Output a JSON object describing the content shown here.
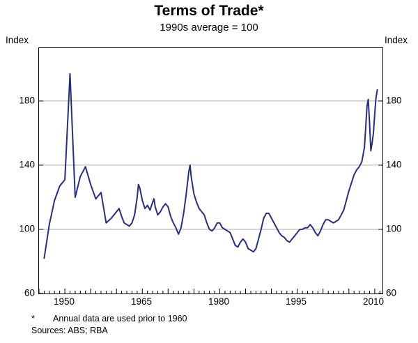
{
  "header": {
    "title": "Terms of Trade*",
    "subtitle": "1990s average = 100"
  },
  "axes": {
    "left_unit": "Index",
    "right_unit": "Index"
  },
  "footnotes": {
    "marker": "*",
    "note": "Annual data are used prior to 1960",
    "sources": "Sources: ABS; RBA"
  },
  "chart_data": {
    "type": "line",
    "title": "Terms of Trade*",
    "subtitle": "1990s average = 100",
    "ylabel_left": "Index",
    "ylabel_right": "Index",
    "x_domain": [
      1945,
      2011.5
    ],
    "y_domain": [
      60,
      213
    ],
    "y_ticks": [
      60,
      100,
      140,
      180
    ],
    "x_ticks": [
      1950,
      1965,
      1980,
      1995,
      2010
    ],
    "gridlines": [
      100,
      140,
      180
    ],
    "grid_color": "#ababab",
    "line_color": "#252e87",
    "series": [
      {
        "name": "Terms of trade (1990s average = 100)",
        "points": [
          [
            1946,
            82
          ],
          [
            1947,
            103
          ],
          [
            1948,
            118
          ],
          [
            1949,
            127
          ],
          [
            1950,
            131
          ],
          [
            1951,
            197
          ],
          [
            1952,
            120
          ],
          [
            1953,
            133
          ],
          [
            1954,
            139
          ],
          [
            1955,
            128
          ],
          [
            1956,
            119
          ],
          [
            1957,
            123
          ],
          [
            1958,
            104
          ],
          [
            1959,
            107
          ],
          [
            1960,
            111
          ],
          [
            1960.5,
            113
          ],
          [
            1961,
            108
          ],
          [
            1961.5,
            104
          ],
          [
            1962,
            103
          ],
          [
            1962.5,
            102
          ],
          [
            1963,
            104
          ],
          [
            1963.5,
            109
          ],
          [
            1964,
            120
          ],
          [
            1964.25,
            128
          ],
          [
            1964.5,
            126
          ],
          [
            1965,
            118
          ],
          [
            1965.5,
            113
          ],
          [
            1966,
            115
          ],
          [
            1966.5,
            112
          ],
          [
            1967,
            117
          ],
          [
            1967.25,
            119
          ],
          [
            1967.5,
            114
          ],
          [
            1968,
            109
          ],
          [
            1968.5,
            111
          ],
          [
            1969,
            114
          ],
          [
            1969.5,
            116
          ],
          [
            1970,
            114
          ],
          [
            1970.5,
            108
          ],
          [
            1971,
            104
          ],
          [
            1971.5,
            101
          ],
          [
            1972,
            97
          ],
          [
            1972.5,
            101
          ],
          [
            1973,
            110
          ],
          [
            1973.5,
            122
          ],
          [
            1974,
            136
          ],
          [
            1974.25,
            140
          ],
          [
            1974.5,
            132
          ],
          [
            1975,
            122
          ],
          [
            1975.5,
            117
          ],
          [
            1976,
            113
          ],
          [
            1976.5,
            111
          ],
          [
            1977,
            109
          ],
          [
            1977.5,
            104
          ],
          [
            1978,
            100
          ],
          [
            1978.5,
            99
          ],
          [
            1979,
            101
          ],
          [
            1979.5,
            104
          ],
          [
            1980,
            104
          ],
          [
            1980.5,
            101
          ],
          [
            1981,
            100
          ],
          [
            1981.5,
            99
          ],
          [
            1982,
            98
          ],
          [
            1982.5,
            94
          ],
          [
            1983,
            90
          ],
          [
            1983.5,
            89
          ],
          [
            1984,
            92
          ],
          [
            1984.5,
            94
          ],
          [
            1985,
            92
          ],
          [
            1985.5,
            88
          ],
          [
            1986,
            87
          ],
          [
            1986.5,
            86
          ],
          [
            1987,
            88
          ],
          [
            1987.5,
            94
          ],
          [
            1988,
            100
          ],
          [
            1988.5,
            107
          ],
          [
            1989,
            110
          ],
          [
            1989.5,
            110
          ],
          [
            1990,
            107
          ],
          [
            1990.5,
            104
          ],
          [
            1991,
            101
          ],
          [
            1991.5,
            98
          ],
          [
            1992,
            96
          ],
          [
            1992.5,
            95
          ],
          [
            1993,
            93
          ],
          [
            1993.5,
            92
          ],
          [
            1994,
            94
          ],
          [
            1994.5,
            96
          ],
          [
            1995,
            98
          ],
          [
            1995.5,
            100
          ],
          [
            1996,
            100
          ],
          [
            1996.5,
            101
          ],
          [
            1997,
            101
          ],
          [
            1997.5,
            103
          ],
          [
            1998,
            101
          ],
          [
            1998.5,
            98
          ],
          [
            1999,
            96
          ],
          [
            1999.5,
            99
          ],
          [
            2000,
            103
          ],
          [
            2000.5,
            106
          ],
          [
            2001,
            106
          ],
          [
            2001.5,
            105
          ],
          [
            2002,
            104
          ],
          [
            2002.5,
            105
          ],
          [
            2003,
            106
          ],
          [
            2003.5,
            109
          ],
          [
            2004,
            112
          ],
          [
            2004.5,
            118
          ],
          [
            2005,
            124
          ],
          [
            2005.5,
            129
          ],
          [
            2006,
            134
          ],
          [
            2006.5,
            137
          ],
          [
            2007,
            139
          ],
          [
            2007.5,
            142
          ],
          [
            2008,
            151
          ],
          [
            2008.25,
            163
          ],
          [
            2008.5,
            177
          ],
          [
            2008.75,
            181
          ],
          [
            2009,
            166
          ],
          [
            2009.25,
            149
          ],
          [
            2009.5,
            154
          ],
          [
            2009.75,
            160
          ],
          [
            2010,
            172
          ],
          [
            2010.25,
            182
          ],
          [
            2010.5,
            187
          ]
        ]
      }
    ],
    "footnote": "* Annual data are used prior to 1960",
    "sources": "Sources: ABS; RBA",
    "legend": "none",
    "grid": "horizontal-only"
  }
}
